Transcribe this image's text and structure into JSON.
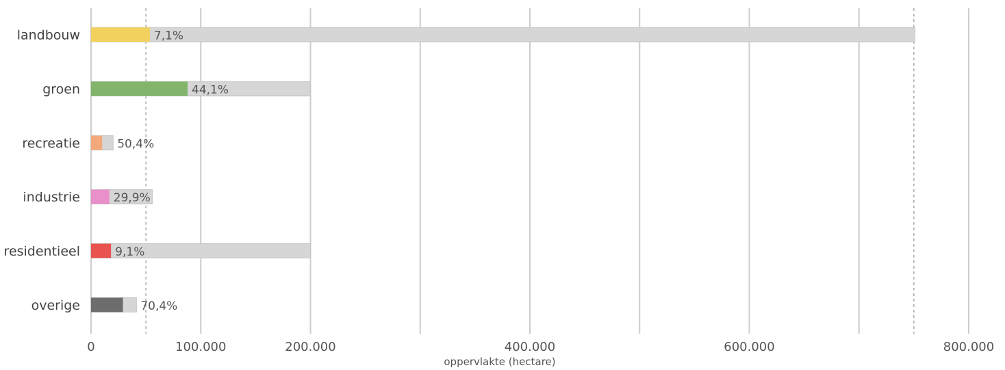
{
  "chart_data": {
    "type": "bar",
    "orientation": "horizontal",
    "stacked": "overlay",
    "categories": [
      "landbouw",
      "groen",
      "recreatie",
      "industrie",
      "residentieel",
      "overige"
    ],
    "series": [
      {
        "values": [
          53600,
          88000,
          10100,
          16700,
          18200,
          29100
        ],
        "colors": [
          "#f2d15f",
          "#82b56b",
          "#f4a97a",
          "#e98fc9",
          "#e8524f",
          "#6d6d6d"
        ]
      },
      {
        "values": [
          751000,
          199800,
          20100,
          55800,
          200000,
          41400
        ],
        "color": "#d6d6d6"
      }
    ],
    "data_labels": [
      "7,1%",
      "44,1%",
      "50,4%",
      "29,9%",
      "9,1%",
      "70,4%"
    ],
    "xlim": [
      0,
      800000
    ],
    "xticks": [
      0,
      100000,
      200000,
      300000,
      400000,
      500000,
      600000,
      700000,
      800000
    ],
    "xtick_labels": [
      "0",
      "100.000",
      "200.000",
      "",
      "400.000",
      "",
      "600.000",
      "",
      "800.000"
    ],
    "xlabel": "oppervlakte (hectare)",
    "reference_lines": [
      50000,
      750000
    ],
    "grid": true,
    "gridline_color": "#cccccc",
    "reference_line_color": "#aaaaaa"
  }
}
